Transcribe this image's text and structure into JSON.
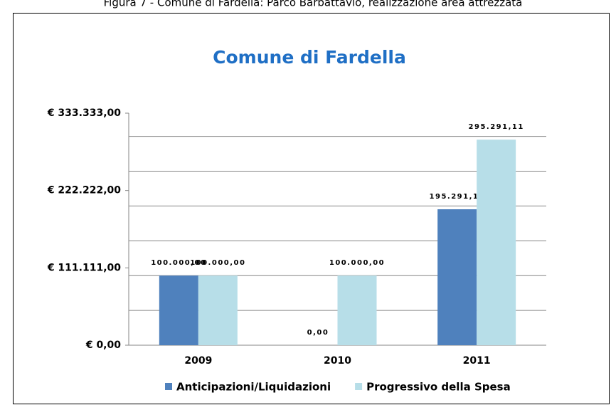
{
  "caption": "Figura 7 - Comune di Fardella: Parco Barbattavio, realizzazione area attrezzata",
  "chart_data": {
    "type": "bar",
    "title": "Comune di Fardella",
    "categories": [
      "2009",
      "2010",
      "2011"
    ],
    "series": [
      {
        "name": "Anticipazioni/Liquidazioni",
        "color": "#4f81bd",
        "values": [
          100000,
          0,
          195291.11
        ],
        "value_labels": [
          "100.000,00",
          "0,00",
          "195.291,11"
        ]
      },
      {
        "name": "Progressivo della Spesa",
        "color": "#b7dee8",
        "values": [
          100000,
          100000,
          295291.11
        ],
        "value_labels": [
          "100.000,00",
          "100.000,00",
          "295.291,11"
        ]
      }
    ],
    "ylim": [
      0,
      333333
    ],
    "yticks": [
      {
        "value": 0,
        "label": "€ 0,00"
      },
      {
        "value": 111111,
        "label": "€ 111.111,00"
      },
      {
        "value": 222222,
        "label": "€ 222.222,00"
      },
      {
        "value": 333333,
        "label": "€ 333.333,00"
      }
    ],
    "ygrid": [
      50000,
      100000,
      150000,
      200000,
      250000,
      300000
    ],
    "grid": true,
    "legend": "bottom"
  }
}
